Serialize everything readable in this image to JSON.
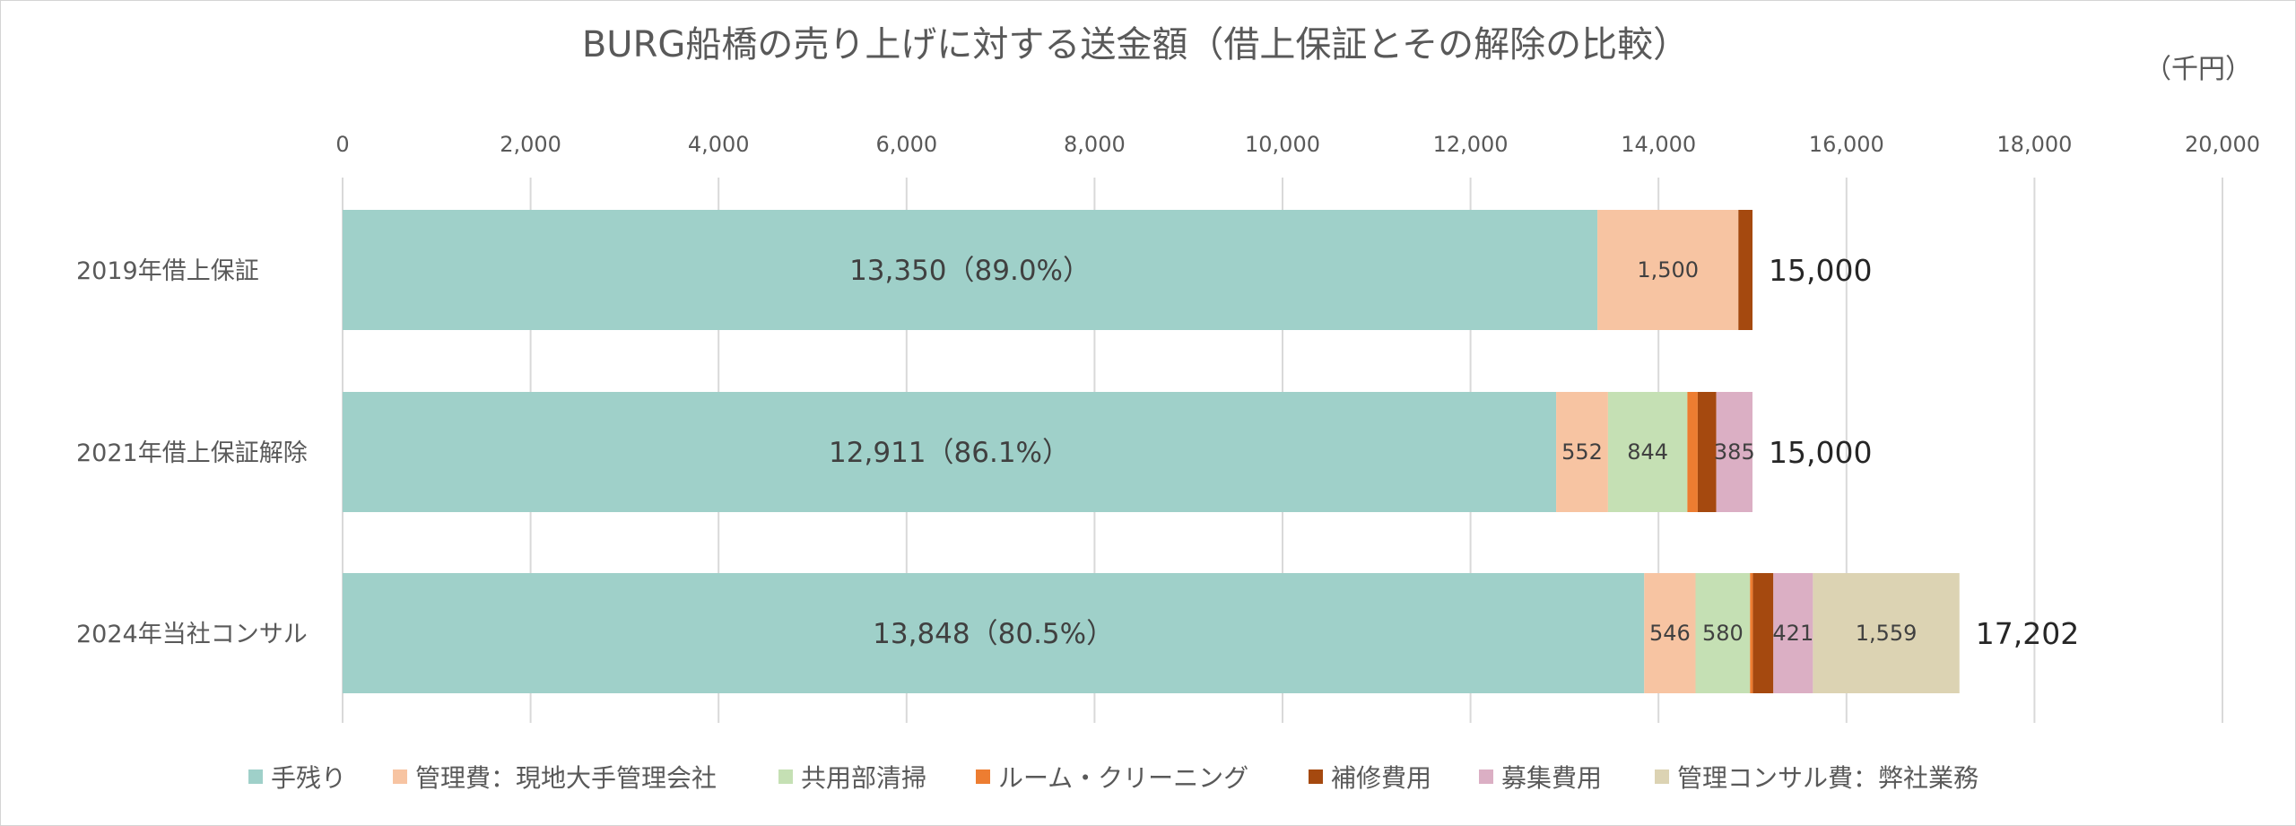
{
  "chart_data": {
    "type": "bar",
    "orientation": "horizontal",
    "stacked": true,
    "title": "BURG船橋の売り上げに対する送金額（借上保証とその解除の比較）",
    "unit_label": "（千円）",
    "xlim": [
      0,
      20000
    ],
    "x_ticks": [
      {
        "value": 0,
        "label": "0"
      },
      {
        "value": 2000,
        "label": "2,000"
      },
      {
        "value": 4000,
        "label": "4,000"
      },
      {
        "value": 6000,
        "label": "6,000"
      },
      {
        "value": 8000,
        "label": "8,000"
      },
      {
        "value": 10000,
        "label": "10,000"
      },
      {
        "value": 12000,
        "label": "12,000"
      },
      {
        "value": 14000,
        "label": "14,000"
      },
      {
        "value": 16000,
        "label": "16,000"
      },
      {
        "value": 18000,
        "label": "18,000"
      },
      {
        "value": 20000,
        "label": "20,000"
      }
    ],
    "grid": true,
    "legend_position": "bottom",
    "categories": [
      "2019年借上保証",
      "2021年借上保証解除",
      "2024年当社コンサル"
    ],
    "totals": [
      {
        "value": 15000,
        "label": "15,000"
      },
      {
        "value": 15000,
        "label": "15,000"
      },
      {
        "value": 17202,
        "label": "17,202"
      }
    ],
    "series": [
      {
        "name": "手残り",
        "color": "#9fd0c9",
        "values": [
          13350,
          12911,
          13848
        ],
        "labels": [
          "13,350（89.0%）",
          "12,911（86.1%）",
          "13,848（80.5%）"
        ]
      },
      {
        "name": "管理費：現地大手管理会社",
        "color": "#f7c4a2",
        "values": [
          1500,
          552,
          546
        ],
        "labels": [
          "1,500",
          "552",
          "546"
        ]
      },
      {
        "name": "共用部清掃",
        "color": "#c5e0b4",
        "values": [
          0,
          844,
          580
        ],
        "labels": [
          "",
          "844",
          "580"
        ]
      },
      {
        "name": "ルーム・クリーニング",
        "color": "#ed7d31",
        "values": [
          0,
          110,
          30
        ],
        "labels": [
          "",
          "",
          ""
        ]
      },
      {
        "name": "補修費用",
        "color": "#a5490f",
        "values": [
          150,
          198,
          218
        ],
        "labels": [
          "",
          "",
          ""
        ]
      },
      {
        "name": "募集費用",
        "color": "#dbafc4",
        "values": [
          0,
          385,
          421
        ],
        "labels": [
          "",
          "385",
          "421"
        ]
      },
      {
        "name": "管理コンサル費：弊社業務",
        "color": "#dcd3b3",
        "values": [
          0,
          0,
          1559
        ],
        "labels": [
          "",
          "",
          "1,559"
        ]
      }
    ]
  }
}
